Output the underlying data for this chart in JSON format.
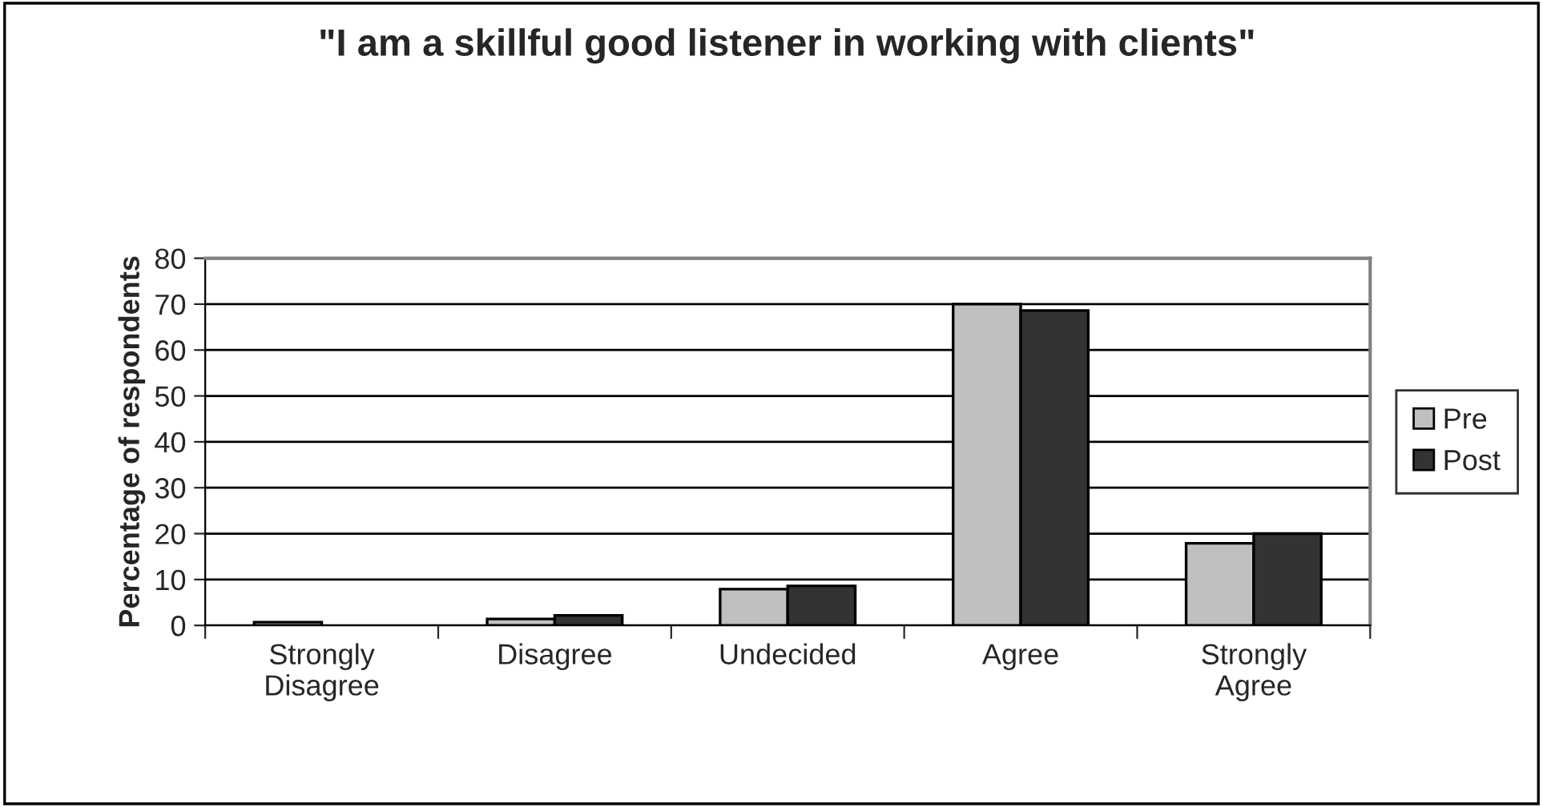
{
  "chart_data": {
    "type": "bar",
    "title": "\"I am a skillful good listener in working with clients\"",
    "ylabel": "Percentage of respondents",
    "categories": [
      "Strongly\nDisagree",
      "Disagree",
      "Undecided",
      "Agree",
      "Strongly\nAgree"
    ],
    "series": [
      {
        "name": "Pre",
        "color": "#c0c0c0",
        "values": [
          0.7,
          1.4,
          7.9,
          70,
          17.9
        ]
      },
      {
        "name": "Post",
        "color": "#333333",
        "values": [
          null,
          2.2,
          8.6,
          68.6,
          20
        ]
      }
    ],
    "ylim": [
      0,
      80
    ],
    "yticks": [
      0,
      10,
      20,
      30,
      40,
      50,
      60,
      70,
      80
    ],
    "grid": "y",
    "legend": "right"
  }
}
